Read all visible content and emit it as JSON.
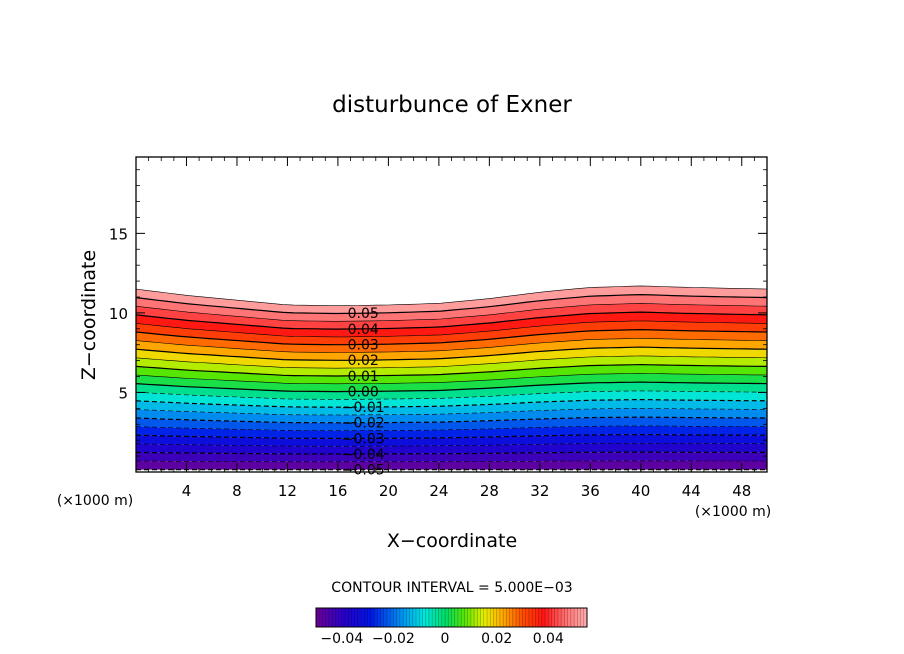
{
  "chart_data": {
    "type": "contour",
    "title": "disturbunce of Exner",
    "xlabel": "X−coordinate",
    "ylabel": "Z−coordinate",
    "xunit_left": "(×1000 m)",
    "xunit_right": "(×1000 m)",
    "xlim": [
      0,
      50
    ],
    "ylim": [
      0,
      19.8
    ],
    "xticks": [
      4,
      8,
      12,
      16,
      20,
      24,
      28,
      32,
      36,
      40,
      44,
      48
    ],
    "xtick_labels": [
      "4",
      "8",
      "12",
      "16",
      "20",
      "24",
      "28",
      "32",
      "36",
      "40",
      "44",
      "48"
    ],
    "yticks": [
      5,
      10,
      15
    ],
    "ytick_labels": [
      "5",
      "10",
      "15"
    ],
    "contour_interval_text": "CONTOUR INTERVAL = 5.000E−03",
    "contour_interval": 0.005,
    "level_min": -0.05,
    "level_max": 0.055,
    "field_top_height": [
      11.5,
      11.1,
      10.8,
      10.5,
      10.45,
      10.5,
      10.6,
      10.9,
      11.3,
      11.6,
      11.7,
      11.6,
      11.5
    ],
    "field_top_x": [
      0,
      4,
      8,
      12,
      16,
      20,
      24,
      28,
      32,
      36,
      40,
      44,
      50
    ],
    "contour_labels": [
      "0.05",
      "0.04",
      "0.03",
      "0.02",
      "0.01",
      "0.00",
      "−0.01",
      "−0.02",
      "−0.03",
      "−0.04",
      "−0.05"
    ],
    "contour_label_values": [
      0.05,
      0.04,
      0.03,
      0.02,
      0.01,
      0.0,
      -0.01,
      -0.02,
      -0.03,
      -0.04,
      -0.05
    ],
    "colorbar": {
      "min": -0.05,
      "max": 0.055,
      "tick_values": [
        -0.04,
        -0.02,
        0,
        0.02,
        0.04
      ],
      "tick_labels": [
        "−0.04",
        "−0.02",
        "0",
        "0.02",
        "0.04"
      ]
    },
    "negative_contours_dashed": true,
    "colormap": "rainbow (purple → blue → cyan → green → yellow → orange → red → pink)"
  }
}
